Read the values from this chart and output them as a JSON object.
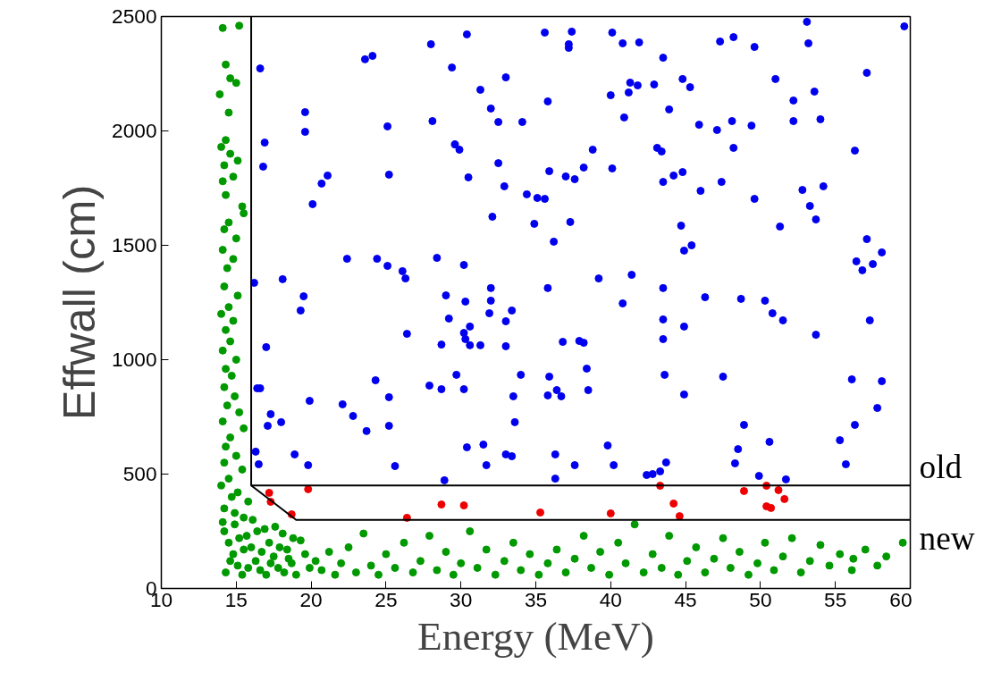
{
  "chart_data": {
    "type": "scatter",
    "xlabel": "Energy (MeV)",
    "ylabel": "Effwall (cm)",
    "xlim": [
      10,
      60
    ],
    "ylim": [
      0,
      2500
    ],
    "xticks": [
      10,
      15,
      20,
      25,
      30,
      35,
      40,
      45,
      50,
      55,
      60
    ],
    "yticks": [
      0,
      500,
      1000,
      1500,
      2000,
      2500
    ],
    "grid": false,
    "marker": "circle",
    "series": [
      {
        "color": "#0000ee",
        "x": [
          16.6,
          16.8,
          16.9,
          16.2,
          17.0,
          17.3,
          17.1,
          16.4,
          16.6,
          16.3,
          16.5,
          18.1,
          18.0,
          18.9,
          19.3,
          19.5,
          19.6,
          19.6,
          19.9,
          19.8,
          20.1,
          20.7,
          21.1,
          22.1,
          22.4,
          22.8,
          23.6,
          24.1,
          23.7,
          24.3,
          24.4,
          25.1,
          25.2,
          25.1,
          25.2,
          25.2,
          25.6,
          26.1,
          26.3,
          26.4,
          28.0,
          28.1,
          27.9,
          28.4,
          28.7,
          28.7,
          28.9,
          29.0,
          29.2,
          29.4,
          29.6,
          29.7,
          29.9,
          30.2,
          30.3,
          30.2,
          30.3,
          30.2,
          30.4,
          30.4,
          30.5,
          30.6,
          30.6,
          31.3,
          31.3,
          31.5,
          31.7,
          32.0,
          32.0,
          31.9,
          32.0,
          32.1,
          32.5,
          32.5,
          32.9,
          33.0,
          33.0,
          33.0,
          33.0,
          33.4,
          33.4,
          33.6,
          33.5,
          34.1,
          34.0,
          34.4,
          34.9,
          35.1,
          35.6,
          35.6,
          35.8,
          35.9,
          35.8,
          35.9,
          35.8,
          36.2,
          36.3,
          36.3,
          36.4,
          36.7,
          36.8,
          37.0,
          37.2,
          37.2,
          37.4,
          37.3,
          37.6,
          37.6,
          37.9,
          38.2,
          38.2,
          38.4,
          38.5,
          38.8,
          39.2,
          39.8,
          40.1,
          40.0,
          40.1,
          40.2,
          40.8,
          40.8,
          40.9,
          41.3,
          41.2,
          41.4,
          41.8,
          41.9,
          42.4,
          42.8,
          42.9,
          43.1,
          43.4,
          43.5,
          43.5,
          43.5,
          43.5,
          43.6,
          43.7,
          43.3,
          43.5,
          43.9,
          44.2,
          44.8,
          44.7,
          44.9,
          44.9,
          44.8,
          44.9,
          45.4,
          45.3,
          45.9,
          46.0,
          46.3,
          47.1,
          47.3,
          47.4,
          47.5,
          48.1,
          48.2,
          48.2,
          48.3,
          48.5,
          48.7,
          48.9,
          49.6,
          49.4,
          49.6,
          49.9,
          50.3,
          50.6,
          50.8,
          51.0,
          51.3,
          51.5,
          51.7,
          52.2,
          52.2,
          52.8,
          53.1,
          53.2,
          53.3,
          53.6,
          53.7,
          53.7,
          54.0,
          54.2,
          55.3,
          55.7,
          56.1,
          56.3,
          56.3,
          56.4,
          56.8,
          57.1,
          57.1,
          57.3,
          57.5,
          57.8,
          58.1,
          58.1,
          59.6
        ],
        "values": [
          2273,
          1844,
          1949,
          1336,
          1055,
          762,
          711,
          875,
          875,
          598,
          543,
          1352,
          727,
          586,
          1215,
          1277,
          2082,
          1996,
          820,
          539,
          1680,
          1770,
          1805,
          805,
          1441,
          754,
          2313,
          2328,
          688,
          910,
          1441,
          2020,
          1809,
          1410,
          836,
          711,
          535,
          1387,
          1355,
          1113,
          2379,
          2043,
          887,
          1445,
          1066,
          871,
          473,
          1281,
          1180,
          2277,
          1941,
          934,
          1918,
          1414,
          1254,
          1117,
          1090,
          871,
          617,
          2422,
          1797,
          1145,
          1063,
          2180,
          1063,
          629,
          539,
          2098,
          1258,
          1203,
          1313,
          1625,
          2039,
          1859,
          1758,
          2234,
          586,
          1168,
          1059,
          578,
          1215,
          727,
          840,
          2039,
          934,
          1723,
          1594,
          1707,
          1703,
          2430,
          2129,
          1824,
          1313,
          926,
          844,
          1516,
          586,
          480,
          867,
          840,
          1078,
          1801,
          2379,
          2363,
          2434,
          1602,
          1789,
          539,
          1082,
          1840,
          1074,
          961,
          867,
          1918,
          1355,
          625,
          1836,
          2156,
          2430,
          539,
          2383,
          1246,
          2059,
          2211,
          2168,
          1371,
          2199,
          2387,
          496,
          500,
          2203,
          1926,
          1910,
          1777,
          1313,
          1176,
          1090,
          934,
          551,
          512,
          2320,
          2094,
          1805,
          1820,
          1586,
          848,
          1145,
          2227,
          1477,
          1500,
          2191,
          2027,
          1738,
          1273,
          2004,
          2391,
          1777,
          926,
          2043,
          2410,
          1926,
          547,
          609,
          1266,
          715,
          2367,
          2023,
          1703,
          492,
          1258,
          641,
          1203,
          2227,
          1582,
          1172,
          477,
          2043,
          2133,
          1742,
          2477,
          2383,
          1672,
          2172,
          1613,
          1109,
          2051,
          1758,
          648,
          543,
          914,
          715,
          1914,
          1430,
          1391,
          2254,
          1527,
          1172,
          1418,
          789,
          1469,
          906,
          2457
        ]
      },
      {
        "color": "#ee0000",
        "x": [
          17.2,
          17.3,
          18.7,
          19.8,
          26.4,
          28.7,
          30.2,
          35.3,
          40.0,
          43.3,
          44.2,
          44.6,
          48.9,
          50.4,
          50.4,
          50.7,
          51.2,
          51.6
        ],
        "values": [
          418,
          379,
          324,
          434,
          309,
          367,
          363,
          332,
          328,
          449,
          371,
          316,
          426,
          449,
          359,
          352,
          430,
          391
        ]
      },
      {
        "color": "#009900",
        "x": [
          15.2,
          14.1,
          14.3,
          14.6,
          15.0,
          13.9,
          14.5,
          14.3,
          14.0,
          14.6,
          15.1,
          14.2,
          14.8,
          14.1,
          14.3,
          15.4,
          15.5,
          14.5,
          14.2,
          15.0,
          14.1,
          14.8,
          14.4,
          14.2,
          15.1,
          14.5,
          14.0,
          14.8,
          14.3,
          14.6,
          14.1,
          15.0,
          14.3,
          14.7,
          14.2,
          14.9,
          14.4,
          15.2,
          14.1,
          15.5,
          14.6,
          14.3,
          15.0,
          14.2,
          15.4,
          14.5,
          14.0,
          15.1,
          14.7,
          15.8,
          14.2,
          14.9,
          15.5,
          14.1,
          14.2,
          14.5,
          14.8,
          15.1,
          15.4,
          15.7,
          16.0,
          16.3,
          16.6,
          16.9,
          17.2,
          17.5,
          17.8,
          18.1,
          18.4,
          18.7,
          19.0,
          19.3,
          19.6,
          19.9,
          14.3,
          14.6,
          14.9,
          15.2,
          15.5,
          15.8,
          16.1,
          16.4,
          16.7,
          17.0,
          17.3,
          17.6,
          17.9,
          18.2,
          18.5,
          18.8,
          20.3,
          20.7,
          21.2,
          21.6,
          22.0,
          22.5,
          23.0,
          23.5,
          24.0,
          24.5,
          25.0,
          25.6,
          26.2,
          26.8,
          27.3,
          27.9,
          28.4,
          29.0,
          29.5,
          30.0,
          30.6,
          31.1,
          31.7,
          32.3,
          32.9,
          33.5,
          34.0,
          34.6,
          35.2,
          35.8,
          36.4,
          37.0,
          37.6,
          38.2,
          38.7,
          39.3,
          39.9,
          40.5,
          41.0,
          41.6,
          42.2,
          42.8,
          43.4,
          43.9,
          44.5,
          45.1,
          45.7,
          46.3,
          46.9,
          47.5,
          48.0,
          48.6,
          49.2,
          49.8,
          50.3,
          50.9,
          51.5,
          52.1,
          52.7,
          53.3,
          54.0,
          54.6,
          55.3,
          56.1,
          56.2,
          57.0,
          57.8,
          58.4,
          59.5
        ],
        "values": [
          2460,
          2450,
          2290,
          2230,
          2210,
          2160,
          2080,
          1960,
          1930,
          1900,
          1870,
          1850,
          1800,
          1780,
          1720,
          1670,
          1640,
          1600,
          1570,
          1530,
          1480,
          1440,
          1400,
          1320,
          1280,
          1230,
          1200,
          1170,
          1130,
          1080,
          1040,
          1000,
          960,
          930,
          880,
          840,
          800,
          770,
          730,
          700,
          660,
          620,
          580,
          550,
          520,
          480,
          450,
          420,
          400,
          380,
          350,
          330,
          310,
          290,
          250,
          200,
          150,
          100,
          60,
          230,
          180,
          120,
          80,
          260,
          200,
          140,
          90,
          240,
          170,
          110,
          60,
          210,
          150,
          90,
          70,
          120,
          280,
          220,
          170,
          90,
          300,
          250,
          160,
          60,
          110,
          270,
          180,
          70,
          130,
          220,
          120,
          80,
          160,
          60,
          110,
          180,
          70,
          240,
          100,
          60,
          150,
          90,
          200,
          70,
          120,
          230,
          80,
          160,
          60,
          110,
          250,
          90,
          170,
          60,
          120,
          200,
          80,
          150,
          60,
          110,
          170,
          70,
          130,
          230,
          90,
          160,
          60,
          200,
          110,
          280,
          70,
          150,
          90,
          230,
          60,
          120,
          180,
          70,
          130,
          220,
          90,
          160,
          60,
          110,
          200,
          80,
          140,
          220,
          70,
          120,
          190,
          100,
          150,
          80,
          130,
          170,
          100,
          140,
          200
        ]
      },
      {
        "name": "old",
        "type": "line",
        "marker": "none",
        "color": "#000000",
        "x": [
          16,
          16,
          60
        ],
        "values": [
          2500,
          450,
          450
        ]
      },
      {
        "name": "new",
        "type": "line",
        "marker": "none",
        "color": "#000000",
        "x": [
          16,
          19,
          60
        ],
        "values": [
          450,
          300,
          300
        ]
      }
    ]
  }
}
